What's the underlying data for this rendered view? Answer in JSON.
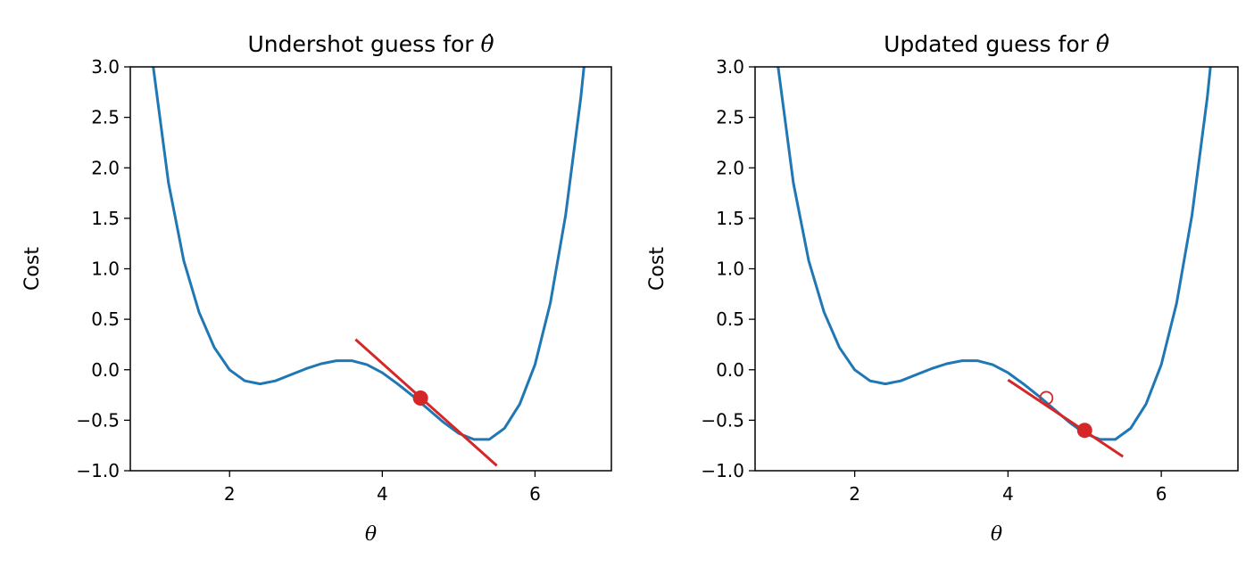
{
  "colors": {
    "curve": "#1f77b4",
    "tangent": "#d62728",
    "marker": "#d62728"
  },
  "chart_data": [
    {
      "type": "line",
      "title": "Undershot guess for ",
      "title_symbol": "θ̂",
      "xlabel": "θ",
      "ylabel": "Cost",
      "xlim": [
        0.7,
        7.0
      ],
      "ylim": [
        -1.0,
        3.0
      ],
      "xticks": [
        2,
        4,
        6
      ],
      "xtick_labels": [
        "2",
        "4",
        "6"
      ],
      "yticks": [
        -1.0,
        -0.5,
        0.0,
        0.5,
        1.0,
        1.5,
        2.0,
        2.5,
        3.0
      ],
      "ytick_labels": [
        "−1.0",
        "−0.5",
        "0.0",
        "0.5",
        "1.0",
        "1.5",
        "2.0",
        "2.5",
        "3.0"
      ],
      "grid": false,
      "curve": {
        "x": [
          0.9,
          1.0,
          1.2,
          1.4,
          1.6,
          1.8,
          2.0,
          2.2,
          2.4,
          2.6,
          2.8,
          3.0,
          3.2,
          3.4,
          3.6,
          3.8,
          4.0,
          4.2,
          4.4,
          4.6,
          4.8,
          5.0,
          5.2,
          5.4,
          5.6,
          5.8,
          6.0,
          6.2,
          6.4,
          6.6,
          6.7
        ],
        "y": [
          3.8,
          3.0,
          1.85,
          1.08,
          0.57,
          0.22,
          0.0,
          -0.11,
          -0.14,
          -0.11,
          -0.05,
          0.01,
          0.06,
          0.09,
          0.09,
          0.05,
          -0.03,
          -0.14,
          -0.26,
          -0.39,
          -0.52,
          -0.63,
          -0.69,
          -0.69,
          -0.58,
          -0.34,
          0.05,
          0.66,
          1.53,
          2.7,
          3.43
        ]
      },
      "tangent": {
        "x": [
          3.65,
          5.5
        ],
        "y": [
          0.3,
          -0.95
        ]
      },
      "current_guess": {
        "x": 4.5,
        "y": -0.28
      },
      "previous_guess": null
    },
    {
      "type": "line",
      "title": "Updated guess for ",
      "title_symbol": "θ̂",
      "xlabel": "θ",
      "ylabel": "Cost",
      "xlim": [
        0.7,
        7.0
      ],
      "ylim": [
        -1.0,
        3.0
      ],
      "xticks": [
        2,
        4,
        6
      ],
      "xtick_labels": [
        "2",
        "4",
        "6"
      ],
      "yticks": [
        -1.0,
        -0.5,
        0.0,
        0.5,
        1.0,
        1.5,
        2.0,
        2.5,
        3.0
      ],
      "ytick_labels": [
        "−1.0",
        "−0.5",
        "0.0",
        "0.5",
        "1.0",
        "1.5",
        "2.0",
        "2.5",
        "3.0"
      ],
      "grid": false,
      "curve": {
        "x": [
          0.9,
          1.0,
          1.2,
          1.4,
          1.6,
          1.8,
          2.0,
          2.2,
          2.4,
          2.6,
          2.8,
          3.0,
          3.2,
          3.4,
          3.6,
          3.8,
          4.0,
          4.2,
          4.4,
          4.6,
          4.8,
          5.0,
          5.2,
          5.4,
          5.6,
          5.8,
          6.0,
          6.2,
          6.4,
          6.6,
          6.7
        ],
        "y": [
          3.8,
          3.0,
          1.85,
          1.08,
          0.57,
          0.22,
          0.0,
          -0.11,
          -0.14,
          -0.11,
          -0.05,
          0.01,
          0.06,
          0.09,
          0.09,
          0.05,
          -0.03,
          -0.14,
          -0.26,
          -0.39,
          -0.52,
          -0.63,
          -0.69,
          -0.69,
          -0.58,
          -0.34,
          0.05,
          0.66,
          1.53,
          2.7,
          3.43
        ]
      },
      "tangent": {
        "x": [
          4.0,
          5.5
        ],
        "y": [
          -0.1,
          -0.86
        ]
      },
      "current_guess": {
        "x": 5.0,
        "y": -0.6
      },
      "previous_guess": {
        "x": 4.5,
        "y": -0.28
      }
    }
  ]
}
